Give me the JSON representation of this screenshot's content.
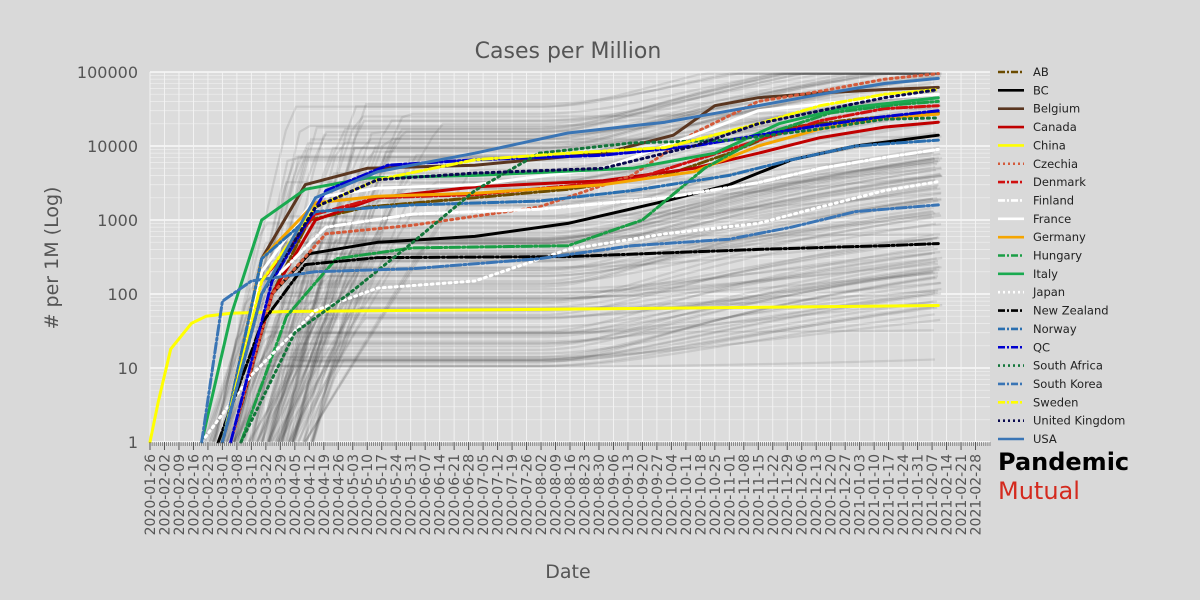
{
  "chart_data": {
    "type": "line",
    "title": "Cases per Million",
    "xlabel": "Date",
    "ylabel": "# per 1M (Log)",
    "yscale": "log",
    "ylim": [
      1,
      100000
    ],
    "yticks": [
      1,
      10,
      100,
      1000,
      10000,
      100000
    ],
    "ytick_labels": [
      "1",
      "10",
      "100",
      "1000",
      "10000",
      "100000"
    ],
    "xlim": [
      "2020-01-26",
      "2021-03-07"
    ],
    "xtick_labels": [
      "2020-01-26",
      "2020-02-02",
      "2020-02-09",
      "2020-02-16",
      "2020-02-23",
      "2020-03-01",
      "2020-03-08",
      "2020-03-15",
      "2020-03-22",
      "2020-03-29",
      "2020-04-05",
      "2020-04-12",
      "2020-04-19",
      "2020-04-26",
      "2020-05-03",
      "2020-05-10",
      "2020-05-17",
      "2020-05-24",
      "2020-05-31",
      "2020-06-07",
      "2020-06-14",
      "2020-06-21",
      "2020-06-28",
      "2020-07-05",
      "2020-07-12",
      "2020-07-19",
      "2020-07-26",
      "2020-08-02",
      "2020-08-09",
      "2020-08-16",
      "2020-08-23",
      "2020-08-30",
      "2020-09-06",
      "2020-09-13",
      "2020-09-20",
      "2020-09-27",
      "2020-10-04",
      "2020-10-11",
      "2020-10-18",
      "2020-10-25",
      "2020-11-01",
      "2020-11-08",
      "2020-11-15",
      "2020-11-22",
      "2020-11-29",
      "2020-12-06",
      "2020-12-13",
      "2020-12-20",
      "2020-12-27",
      "2021-01-03",
      "2021-01-10",
      "2021-01-17",
      "2021-01-24",
      "2021-01-31",
      "2021-02-07",
      "2021-02-14",
      "2021-02-21",
      "2021-02-28"
    ],
    "grid": true,
    "legend_position": "right",
    "background_series": "many grey translucent lines (other regions)",
    "series": [
      {
        "name": "AB",
        "color": "#6b4b00",
        "dash": "dashdot",
        "x": [
          "2020-03-10",
          "2020-03-25",
          "2020-04-12",
          "2020-05-10",
          "2020-07-01",
          "2020-08-15",
          "2020-10-01",
          "2020-11-01",
          "2020-12-01",
          "2021-01-01",
          "2021-02-10"
        ],
        "values": [
          3,
          100,
          1000,
          1500,
          2000,
          2600,
          4000,
          8000,
          18000,
          23000,
          28000
        ]
      },
      {
        "name": "BC",
        "color": "#000000",
        "dash": "solid",
        "x": [
          "2020-03-08",
          "2020-03-25",
          "2020-04-12",
          "2020-05-15",
          "2020-07-01",
          "2020-08-15",
          "2020-10-01",
          "2020-11-01",
          "2020-12-01",
          "2021-01-01",
          "2021-02-10"
        ],
        "values": [
          2,
          100,
          350,
          500,
          600,
          900,
          1800,
          3000,
          6500,
          10000,
          14000
        ]
      },
      {
        "name": "Belgium",
        "color": "#5a3620",
        "dash": "solid",
        "x": [
          "2020-03-01",
          "2020-03-20",
          "2020-04-10",
          "2020-05-10",
          "2020-07-01",
          "2020-09-01",
          "2020-10-05",
          "2020-10-25",
          "2020-11-15",
          "2020-12-15",
          "2021-01-15",
          "2021-02-10"
        ],
        "values": [
          1,
          300,
          3000,
          5000,
          5500,
          8000,
          14000,
          35000,
          45000,
          52000,
          58000,
          62000
        ]
      },
      {
        "name": "Canada",
        "color": "#c00000",
        "dash": "solid",
        "x": [
          "2020-03-05",
          "2020-03-25",
          "2020-04-15",
          "2020-05-15",
          "2020-07-01",
          "2020-09-01",
          "2020-10-15",
          "2020-11-15",
          "2020-12-15",
          "2021-01-15",
          "2021-02-10"
        ],
        "values": [
          1,
          100,
          1000,
          2000,
          2800,
          3400,
          5000,
          8000,
          13000,
          18000,
          21000
        ]
      },
      {
        "name": "China",
        "color": "#ffff00",
        "dash": "solid",
        "x": [
          "2020-01-26",
          "2020-01-30",
          "2020-02-05",
          "2020-02-15",
          "2020-02-22",
          "2020-03-05",
          "2020-04-01",
          "2020-06-01",
          "2020-09-01",
          "2021-01-01",
          "2021-02-10"
        ],
        "values": [
          1,
          3.5,
          18,
          40,
          50,
          55,
          58,
          60,
          63,
          68,
          70
        ]
      },
      {
        "name": "Czechia",
        "color": "#d45a3a",
        "dash": "dotted",
        "x": [
          "2020-03-05",
          "2020-03-25",
          "2020-04-20",
          "2020-06-01",
          "2020-08-01",
          "2020-09-15",
          "2020-10-15",
          "2020-11-15",
          "2020-12-15",
          "2021-01-15",
          "2021-02-10"
        ],
        "values": [
          1,
          100,
          650,
          850,
          1500,
          4000,
          15000,
          40000,
          55000,
          80000,
          95000
        ]
      },
      {
        "name": "Denmark",
        "color": "#d01010",
        "dash": "dashdot",
        "x": [
          "2020-03-01",
          "2020-03-20",
          "2020-04-15",
          "2020-05-15",
          "2020-07-01",
          "2020-09-15",
          "2020-11-01",
          "2020-12-15",
          "2021-01-15",
          "2021-02-10"
        ],
        "values": [
          1,
          150,
          1200,
          2000,
          2200,
          3500,
          9000,
          22000,
          32000,
          35000
        ]
      },
      {
        "name": "Finland",
        "color": "#ffffff",
        "dash": "dashdot",
        "x": [
          "2020-03-05",
          "2020-03-25",
          "2020-04-20",
          "2020-06-01",
          "2020-08-01",
          "2020-10-01",
          "2020-11-15",
          "2020-12-15",
          "2021-01-15",
          "2021-02-10"
        ],
        "values": [
          1,
          150,
          800,
          1200,
          1400,
          2000,
          3200,
          5000,
          7000,
          9000
        ]
      },
      {
        "name": "France",
        "color": "#ffffff",
        "dash": "solid",
        "x": [
          "2020-03-01",
          "2020-03-20",
          "2020-04-15",
          "2020-05-15",
          "2020-07-01",
          "2020-09-01",
          "2020-10-15",
          "2020-11-15",
          "2020-12-15",
          "2021-01-15",
          "2021-02-10"
        ],
        "values": [
          1,
          200,
          2000,
          2700,
          3000,
          5000,
          14000,
          30000,
          37000,
          45000,
          50000
        ]
      },
      {
        "name": "Germany",
        "color": "#f5a500",
        "dash": "solid",
        "x": [
          "2020-03-01",
          "2020-03-20",
          "2020-04-15",
          "2020-05-15",
          "2020-07-01",
          "2020-09-01",
          "2020-10-15",
          "2020-11-15",
          "2020-12-15",
          "2021-01-15",
          "2021-02-10"
        ],
        "values": [
          1,
          300,
          1700,
          2100,
          2300,
          3000,
          4500,
          10000,
          17000,
          24000,
          27000
        ]
      },
      {
        "name": "Hungary",
        "color": "#1a9e46",
        "dash": "dashdot",
        "x": [
          "2020-03-10",
          "2020-04-01",
          "2020-04-25",
          "2020-06-01",
          "2020-08-15",
          "2020-09-20",
          "2020-10-20",
          "2020-11-20",
          "2020-12-20",
          "2021-01-20",
          "2021-02-10"
        ],
        "values": [
          1,
          50,
          300,
          420,
          450,
          1000,
          5000,
          15000,
          28000,
          36000,
          40000
        ]
      },
      {
        "name": "Italy",
        "color": "#1aaa50",
        "dash": "solid",
        "x": [
          "2020-02-20",
          "2020-03-05",
          "2020-03-20",
          "2020-04-10",
          "2020-05-10",
          "2020-07-01",
          "2020-09-15",
          "2020-10-25",
          "2020-11-25",
          "2020-12-25",
          "2021-01-25",
          "2021-02-10"
        ],
        "values": [
          1,
          50,
          1000,
          2600,
          3700,
          4000,
          5000,
          8000,
          20000,
          32000,
          40000,
          45000
        ]
      },
      {
        "name": "Japan",
        "color": "#ffffff",
        "dash": "dotted",
        "x": [
          "2020-02-20",
          "2020-03-15",
          "2020-04-15",
          "2020-05-15",
          "2020-07-01",
          "2020-08-15",
          "2020-10-01",
          "2020-11-15",
          "2020-12-15",
          "2021-01-15",
          "2021-02-10"
        ],
        "values": [
          1,
          8,
          60,
          120,
          150,
          400,
          650,
          900,
          1500,
          2500,
          3300
        ]
      },
      {
        "name": "New Zealand",
        "color": "#000000",
        "dash": "dashdot",
        "x": [
          "2020-02-28",
          "2020-03-20",
          "2020-04-10",
          "2020-05-15",
          "2020-08-15",
          "2020-11-15",
          "2021-01-15",
          "2021-02-10"
        ],
        "values": [
          1,
          40,
          250,
          310,
          320,
          400,
          450,
          480
        ]
      },
      {
        "name": "Norway",
        "color": "#2a6fb0",
        "dash": "dashdot",
        "x": [
          "2020-03-01",
          "2020-03-20",
          "2020-04-15",
          "2020-06-01",
          "2020-08-01",
          "2020-09-15",
          "2020-11-01",
          "2020-12-01",
          "2021-01-01",
          "2021-02-10"
        ],
        "values": [
          1,
          300,
          1300,
          1600,
          1800,
          2500,
          4000,
          6500,
          10000,
          12000
        ]
      },
      {
        "name": "QC",
        "color": "#0000d0",
        "dash": "dashdot",
        "x": [
          "2020-03-05",
          "2020-03-25",
          "2020-04-20",
          "2020-05-20",
          "2020-07-01",
          "2020-09-01",
          "2020-10-15",
          "2020-11-15",
          "2020-12-15",
          "2021-01-15",
          "2021-02-10"
        ],
        "values": [
          1,
          150,
          2500,
          5500,
          6500,
          7500,
          10000,
          14000,
          19000,
          25000,
          30000
        ]
      },
      {
        "name": "South Africa",
        "color": "#13753a",
        "dash": "dotted",
        "x": [
          "2020-03-10",
          "2020-04-05",
          "2020-05-01",
          "2020-06-01",
          "2020-07-01",
          "2020-08-01",
          "2020-09-15",
          "2020-11-01",
          "2020-12-15",
          "2021-01-15",
          "2021-02-10"
        ],
        "values": [
          1,
          30,
          100,
          500,
          2500,
          8000,
          11000,
          12000,
          17000,
          23000,
          24000
        ]
      },
      {
        "name": "South Korea",
        "color": "#3a75b5",
        "dash": "dashdot",
        "x": [
          "2020-02-20",
          "2020-03-01",
          "2020-03-15",
          "2020-04-15",
          "2020-06-01",
          "2020-08-01",
          "2020-09-15",
          "2020-11-01",
          "2020-12-01",
          "2021-01-01",
          "2021-02-10"
        ],
        "values": [
          1,
          80,
          150,
          200,
          220,
          300,
          450,
          550,
          800,
          1300,
          1600
        ]
      },
      {
        "name": "Sweden",
        "color": "#ffff00",
        "dash": "dashdot",
        "x": [
          "2020-03-01",
          "2020-03-20",
          "2020-04-15",
          "2020-05-15",
          "2020-07-01",
          "2020-08-15",
          "2020-10-01",
          "2020-11-15",
          "2020-12-15",
          "2021-01-15",
          "2021-02-10"
        ],
        "values": [
          1,
          150,
          1500,
          3500,
          6500,
          8000,
          9500,
          20000,
          35000,
          50000,
          58000
        ]
      },
      {
        "name": "United Kingdom",
        "color": "#0a0a50",
        "dash": "dotted",
        "x": [
          "2020-03-01",
          "2020-03-20",
          "2020-04-15",
          "2020-05-15",
          "2020-07-01",
          "2020-09-01",
          "2020-10-15",
          "2020-11-15",
          "2020-12-15",
          "2021-01-15",
          "2021-02-10"
        ],
        "values": [
          1,
          100,
          1500,
          3500,
          4300,
          5000,
          10000,
          20000,
          30000,
          45000,
          58000
        ]
      },
      {
        "name": "USA",
        "color": "#3a75b5",
        "dash": "solid",
        "x": [
          "2020-03-01",
          "2020-03-20",
          "2020-04-15",
          "2020-05-15",
          "2020-07-01",
          "2020-08-15",
          "2020-10-01",
          "2020-11-15",
          "2020-12-15",
          "2021-01-15",
          "2021-02-10"
        ],
        "values": [
          1,
          100,
          2000,
          4500,
          8000,
          15000,
          21000,
          35000,
          50000,
          70000,
          82000
        ]
      }
    ]
  },
  "branding": {
    "line1": "Pandemic",
    "line2": "Mutual",
    "line1_color": "#000000",
    "line2_color": "#d42a1e"
  }
}
